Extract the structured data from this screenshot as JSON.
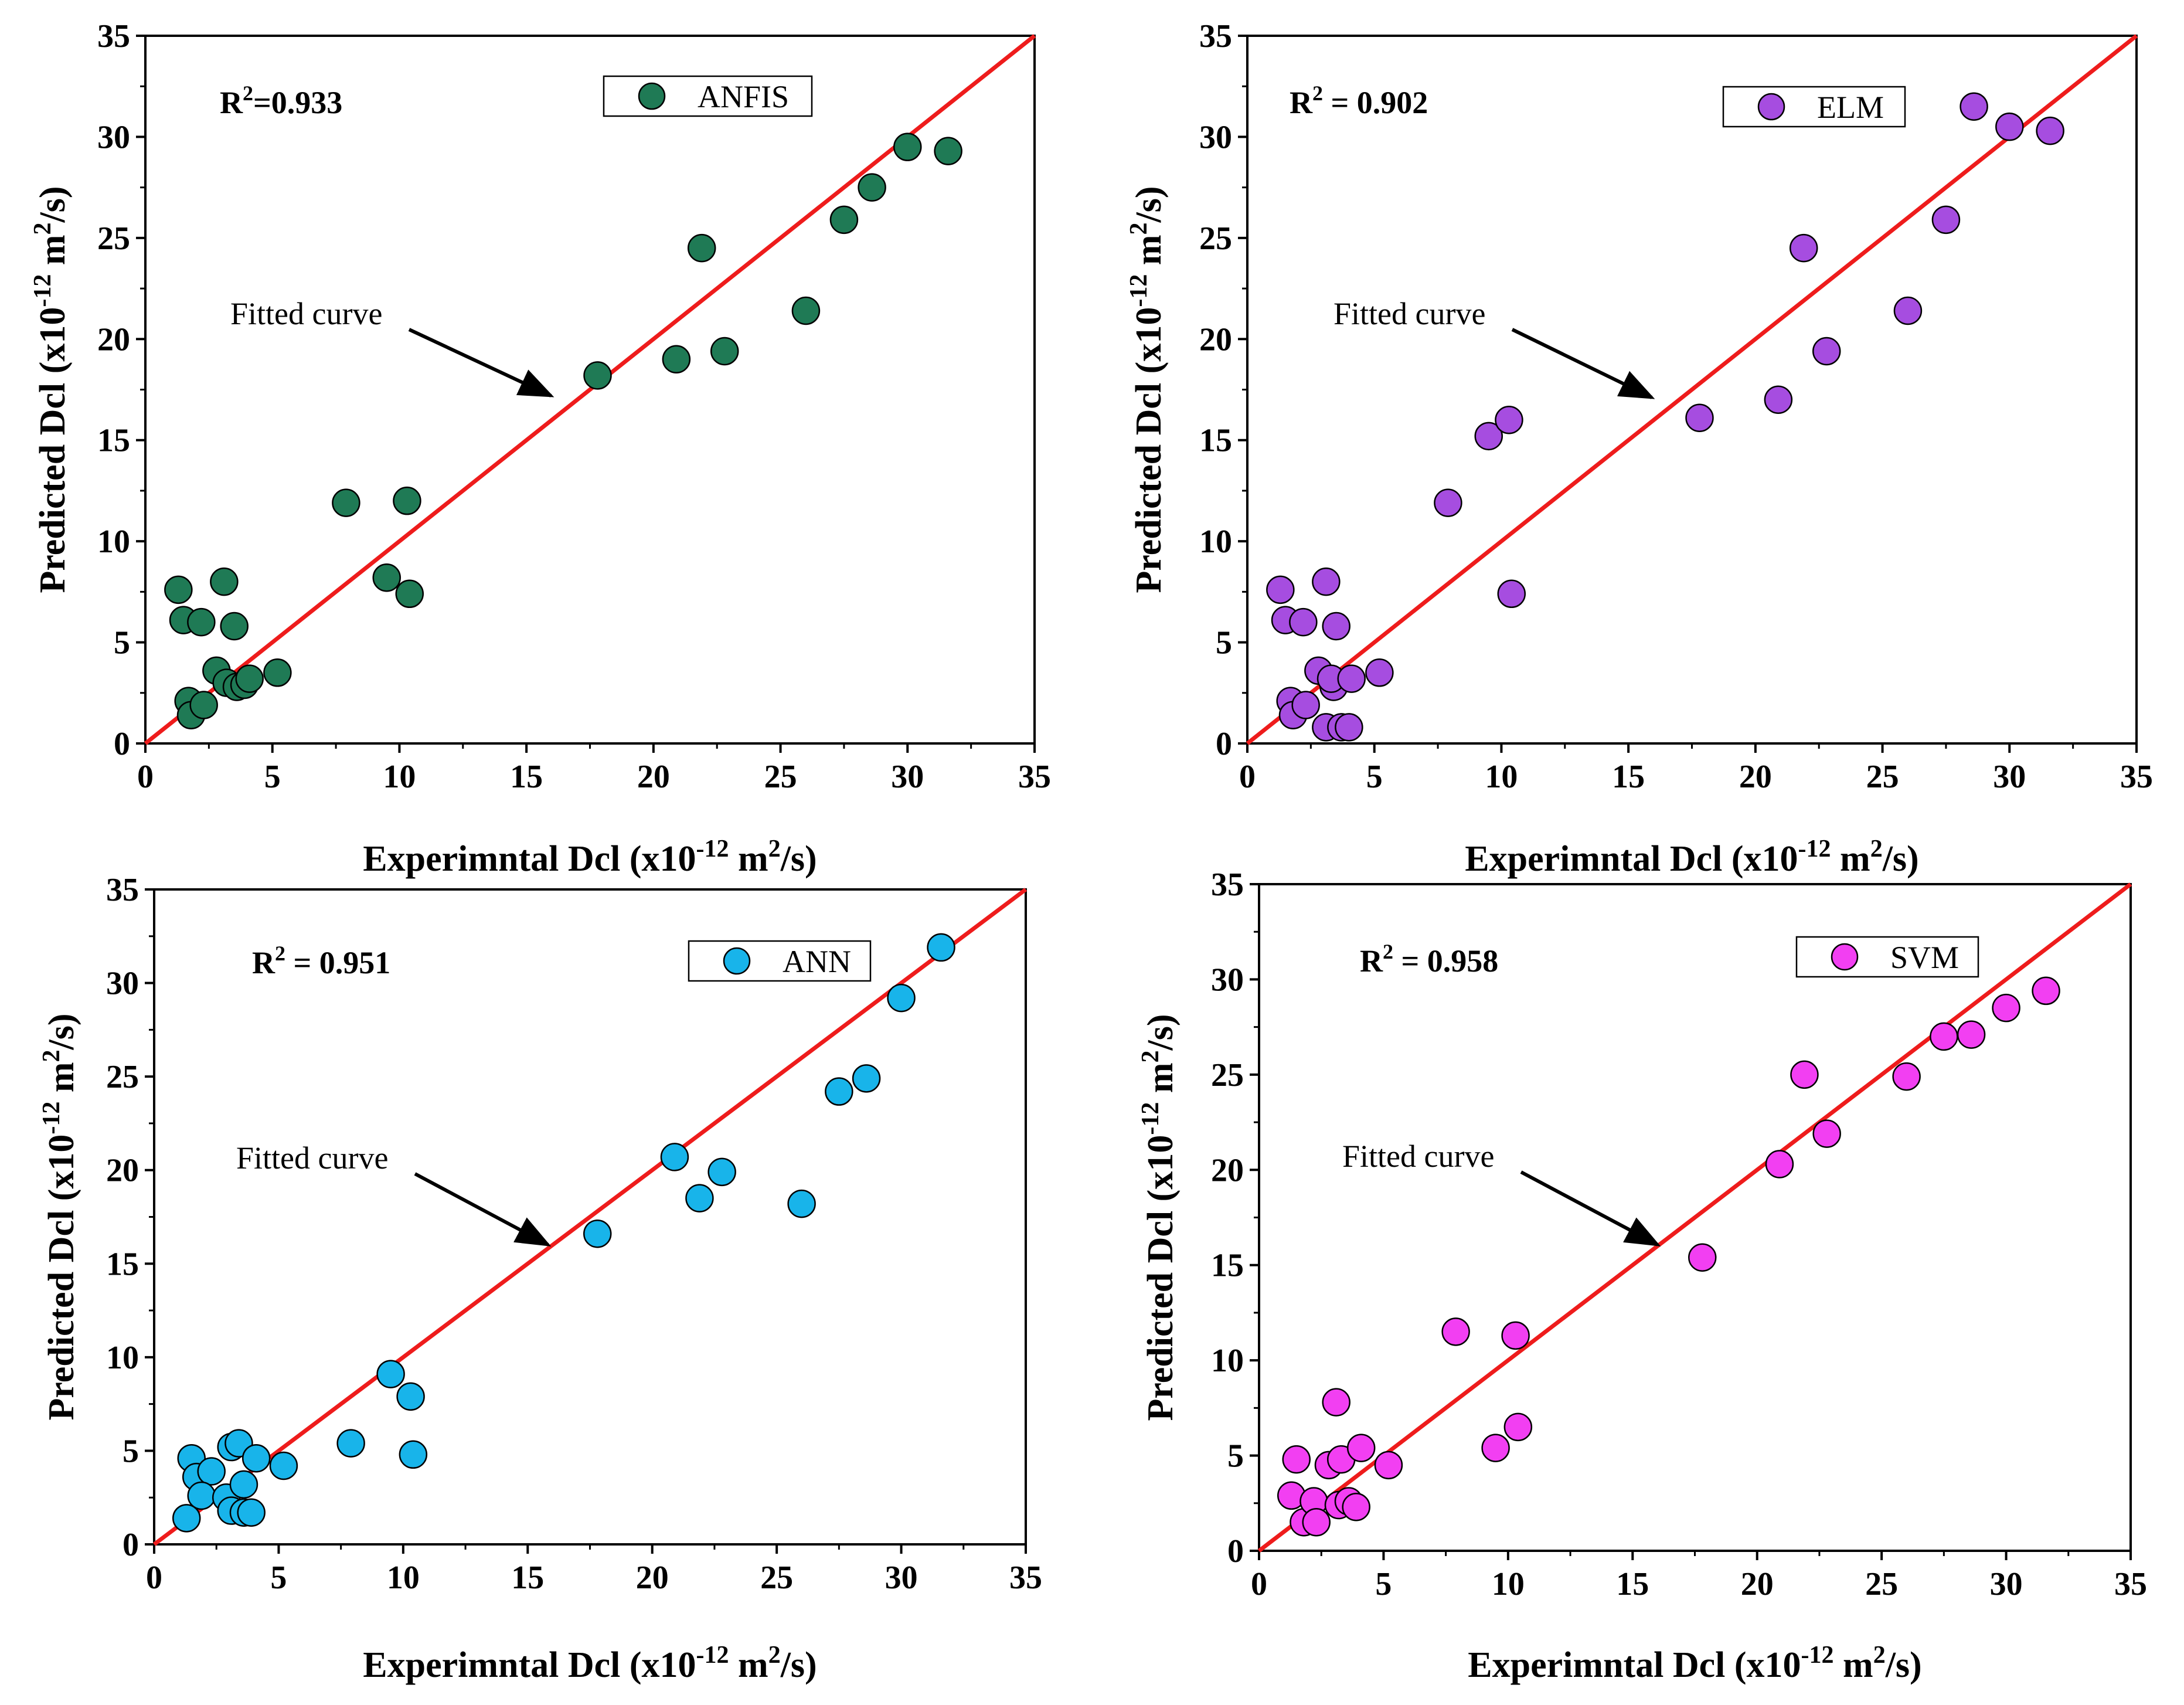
{
  "chart_data": [
    {
      "type": "scatter",
      "model": "ANFIS",
      "legend": "ANFIS",
      "color": "#1f7a55",
      "r2_prefix": "R",
      "r2_sup": "2",
      "r2_value": "=0.933",
      "annotation": "Fitted curve",
      "xlabel_main": "Experimntal Dcl (x10",
      "xlabel_sup1": "-12",
      "xlabel_mid": " m",
      "xlabel_sup2": "2",
      "xlabel_end": "/s)",
      "ylabel_main": "Predicted Dcl (x10",
      "ylabel_sup1": "-12",
      "ylabel_mid": " m",
      "ylabel_sup2": "2",
      "ylabel_end": "/s)",
      "xlim": [
        0,
        35
      ],
      "ylim": [
        0,
        35
      ],
      "ticks": [
        "0",
        "5",
        "10",
        "15",
        "20",
        "25",
        "30",
        "35"
      ],
      "fit_line": [
        [
          0,
          0
        ],
        [
          35,
          35
        ]
      ],
      "points": [
        [
          1.3,
          7.6
        ],
        [
          1.5,
          6.1
        ],
        [
          2.2,
          6.0
        ],
        [
          3.1,
          8.0
        ],
        [
          3.5,
          5.8
        ],
        [
          2.8,
          3.6
        ],
        [
          1.7,
          2.1
        ],
        [
          1.8,
          1.4
        ],
        [
          2.3,
          1.9
        ],
        [
          3.2,
          3.0
        ],
        [
          3.6,
          2.8
        ],
        [
          3.9,
          2.9
        ],
        [
          4.1,
          3.2
        ],
        [
          5.2,
          3.5
        ],
        [
          7.9,
          11.9
        ],
        [
          10.3,
          12.0
        ],
        [
          9.5,
          8.2
        ],
        [
          10.4,
          7.4
        ],
        [
          17.8,
          18.2
        ],
        [
          20.9,
          19.0
        ],
        [
          21.9,
          24.5
        ],
        [
          22.8,
          19.4
        ],
        [
          26.0,
          21.4
        ],
        [
          27.5,
          25.9
        ],
        [
          28.6,
          27.5
        ],
        [
          30.0,
          29.5
        ],
        [
          31.6,
          29.3
        ]
      ]
    },
    {
      "type": "scatter",
      "model": "ELM",
      "legend": "ELM",
      "color": "#a64de0",
      "r2_prefix": "R",
      "r2_sup": "2",
      "r2_value": " = 0.902",
      "annotation": "Fitted curve",
      "xlabel_main": "Experimntal Dcl (x10",
      "xlabel_sup1": "-12",
      "xlabel_mid": " m",
      "xlabel_sup2": "2",
      "xlabel_end": "/s)",
      "ylabel_main": "Predicted Dcl (x10",
      "ylabel_sup1": "-12",
      "ylabel_mid": " m",
      "ylabel_sup2": "2",
      "ylabel_end": "/s)",
      "xlim": [
        0,
        35
      ],
      "ylim": [
        0,
        35
      ],
      "ticks": [
        "0",
        "5",
        "10",
        "15",
        "20",
        "25",
        "30",
        "35"
      ],
      "fit_line": [
        [
          0,
          0
        ],
        [
          35,
          35
        ]
      ],
      "points": [
        [
          1.3,
          7.6
        ],
        [
          1.5,
          6.1
        ],
        [
          2.2,
          6.0
        ],
        [
          3.1,
          8.0
        ],
        [
          3.5,
          5.8
        ],
        [
          2.8,
          3.6
        ],
        [
          1.7,
          2.1
        ],
        [
          1.8,
          1.4
        ],
        [
          2.3,
          1.9
        ],
        [
          3.4,
          2.8
        ],
        [
          3.3,
          3.2
        ],
        [
          4.1,
          3.2
        ],
        [
          5.2,
          3.5
        ],
        [
          3.1,
          0.8
        ],
        [
          3.7,
          0.8
        ],
        [
          4.0,
          0.8
        ],
        [
          7.9,
          11.9
        ],
        [
          9.5,
          15.2
        ],
        [
          10.3,
          16.0
        ],
        [
          10.4,
          7.4
        ],
        [
          17.8,
          16.1
        ],
        [
          20.9,
          17.0
        ],
        [
          21.9,
          24.5
        ],
        [
          22.8,
          19.4
        ],
        [
          26.0,
          21.4
        ],
        [
          27.5,
          25.9
        ],
        [
          28.6,
          31.5
        ],
        [
          30.0,
          30.5
        ],
        [
          31.6,
          30.3
        ]
      ]
    },
    {
      "type": "scatter",
      "model": "ANN",
      "legend": "ANN",
      "color": "#18b4ea",
      "r2_prefix": "R",
      "r2_sup": "2",
      "r2_value": " = 0.951",
      "annotation": "Fitted curve",
      "xlabel_main": "Experimntal Dcl (x10",
      "xlabel_sup1": "-12",
      "xlabel_mid": " m",
      "xlabel_sup2": "2",
      "xlabel_end": "/s)",
      "ylabel_main": "Predicted Dcl (x10",
      "ylabel_sup1": "-12",
      "ylabel_mid": " m",
      "ylabel_sup2": "2",
      "ylabel_end": "/s)",
      "xlim": [
        0,
        35
      ],
      "ylim": [
        0,
        35
      ],
      "ticks": [
        "0",
        "5",
        "10",
        "15",
        "20",
        "25",
        "30",
        "35"
      ],
      "fit_line": [
        [
          0,
          0
        ],
        [
          35,
          35
        ]
      ],
      "points": [
        [
          1.5,
          4.6
        ],
        [
          1.7,
          3.6
        ],
        [
          2.3,
          3.9
        ],
        [
          1.9,
          2.6
        ],
        [
          1.3,
          1.4
        ],
        [
          2.9,
          2.5
        ],
        [
          3.1,
          5.2
        ],
        [
          3.4,
          5.4
        ],
        [
          3.6,
          3.2
        ],
        [
          4.1,
          4.6
        ],
        [
          5.2,
          4.2
        ],
        [
          3.1,
          1.8
        ],
        [
          3.6,
          1.7
        ],
        [
          3.9,
          1.7
        ],
        [
          7.9,
          5.4
        ],
        [
          9.5,
          9.1
        ],
        [
          10.3,
          7.9
        ],
        [
          10.4,
          4.8
        ],
        [
          17.8,
          16.6
        ],
        [
          20.9,
          20.7
        ],
        [
          21.9,
          18.5
        ],
        [
          22.8,
          19.9
        ],
        [
          26.0,
          18.2
        ],
        [
          27.5,
          24.2
        ],
        [
          28.6,
          24.9
        ],
        [
          30.0,
          29.2
        ],
        [
          31.6,
          31.9
        ]
      ]
    },
    {
      "type": "scatter",
      "model": "SVM",
      "legend": "SVM",
      "color": "#f23ff2",
      "r2_prefix": "R",
      "r2_sup": "2",
      "r2_value": " = 0.958",
      "annotation": "Fitted curve",
      "xlabel_main": "Experimntal Dcl (x10",
      "xlabel_sup1": "-12",
      "xlabel_mid": " m",
      "xlabel_sup2": "2",
      "xlabel_end": "/s)",
      "ylabel_main": "Predicted Dcl (x10",
      "ylabel_sup1": "-12",
      "ylabel_mid": " m",
      "ylabel_sup2": "2",
      "ylabel_end": "/s)",
      "xlim": [
        0,
        35
      ],
      "ylim": [
        0,
        35
      ],
      "ticks": [
        "0",
        "5",
        "10",
        "15",
        "20",
        "25",
        "30",
        "35"
      ],
      "fit_line": [
        [
          0,
          0
        ],
        [
          35,
          35
        ]
      ],
      "points": [
        [
          1.3,
          2.9
        ],
        [
          1.5,
          4.8
        ],
        [
          1.8,
          1.5
        ],
        [
          2.2,
          2.6
        ],
        [
          2.3,
          1.5
        ],
        [
          2.8,
          4.5
        ],
        [
          3.1,
          7.8
        ],
        [
          3.2,
          2.4
        ],
        [
          3.3,
          4.8
        ],
        [
          3.6,
          2.6
        ],
        [
          3.9,
          2.3
        ],
        [
          4.1,
          5.4
        ],
        [
          5.2,
          4.5
        ],
        [
          7.9,
          11.5
        ],
        [
          9.5,
          5.4
        ],
        [
          10.3,
          11.3
        ],
        [
          10.4,
          6.5
        ],
        [
          17.8,
          15.4
        ],
        [
          20.9,
          20.3
        ],
        [
          21.9,
          25.0
        ],
        [
          22.8,
          21.9
        ],
        [
          26.0,
          24.9
        ],
        [
          27.5,
          27.0
        ],
        [
          28.6,
          27.1
        ],
        [
          30.0,
          28.5
        ],
        [
          31.6,
          29.4
        ]
      ]
    }
  ]
}
